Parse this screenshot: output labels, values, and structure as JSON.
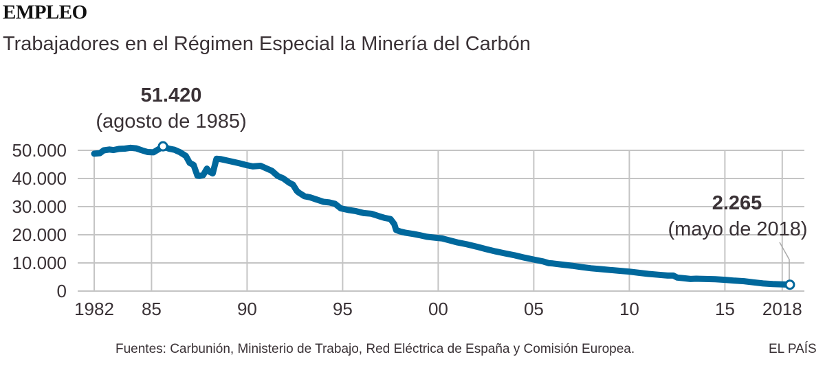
{
  "header": {
    "kicker": "EMPLEO",
    "subtitle": "Trabajadores en el Régimen Especial la Minería del Carbón"
  },
  "footer": {
    "source": "Fuentes: Carbunión, Ministerio de Trabajo, Red Eléctrica de España y Comisión Europea.",
    "brand": "EL PAÍS"
  },
  "colors": {
    "line": "#00689c",
    "grid": "#c4c4c4",
    "text": "#3a3236"
  },
  "chart_data": {
    "type": "line",
    "title": "Trabajadores en el Régimen Especial la Minería del Carbón",
    "xlabel": "",
    "ylabel": "",
    "xlim": [
      1982,
      2018.4
    ],
    "ylim": [
      0,
      50000
    ],
    "grid": true,
    "legend": "none",
    "y_ticks": [
      {
        "value": 0,
        "label": "0"
      },
      {
        "value": 10000,
        "label": "10.000"
      },
      {
        "value": 20000,
        "label": "20.000"
      },
      {
        "value": 30000,
        "label": "30.000"
      },
      {
        "value": 40000,
        "label": "40.000"
      },
      {
        "value": 50000,
        "label": "50.000"
      }
    ],
    "x_ticks": [
      {
        "value": 1982,
        "label": "1982"
      },
      {
        "value": 1985,
        "label": "85"
      },
      {
        "value": 1990,
        "label": "90"
      },
      {
        "value": 1995,
        "label": "95"
      },
      {
        "value": 2000,
        "label": "00"
      },
      {
        "value": 2005,
        "label": "05"
      },
      {
        "value": 2010,
        "label": "10"
      },
      {
        "value": 2015,
        "label": "15"
      },
      {
        "value": 2018,
        "label": "2018"
      }
    ],
    "series": [
      {
        "name": "Trabajadores",
        "x": [
          1982.0,
          1982.3,
          1982.5,
          1982.8,
          1983.0,
          1983.3,
          1983.6,
          1983.9,
          1984.2,
          1984.5,
          1984.8,
          1985.1,
          1985.4,
          1985.6,
          1985.9,
          1986.2,
          1986.5,
          1986.8,
          1987.0,
          1987.2,
          1987.4,
          1987.5,
          1987.7,
          1987.9,
          1988.0,
          1988.2,
          1988.4,
          1988.6,
          1988.8,
          1989.2,
          1989.6,
          1990.0,
          1990.3,
          1990.7,
          1991.0,
          1991.3,
          1991.6,
          1991.9,
          1992.2,
          1992.4,
          1992.6,
          1992.7,
          1993.0,
          1993.3,
          1993.6,
          1994.0,
          1994.3,
          1994.6,
          1994.9,
          1995.3,
          1995.7,
          1996.1,
          1996.5,
          1996.9,
          1997.2,
          1997.5,
          1997.7,
          1997.8,
          1998.0,
          1998.3,
          1998.7,
          1999.0,
          1999.4,
          1999.8,
          2000.2,
          2000.6,
          2001.0,
          2001.5,
          2002.0,
          2002.5,
          2003.0,
          2003.5,
          2004.0,
          2004.5,
          2005.0,
          2005.5,
          2005.8,
          2006.0,
          2006.5,
          2007.0,
          2007.5,
          2008.0,
          2008.5,
          2009.0,
          2009.5,
          2010.0,
          2010.5,
          2011.0,
          2011.5,
          2012.0,
          2012.3,
          2012.5,
          2012.8,
          2013.2,
          2013.5,
          2014.0,
          2014.5,
          2015.0,
          2015.5,
          2016.0,
          2016.5,
          2017.0,
          2017.5,
          2018.0,
          2018.4
        ],
        "y": [
          48800,
          49000,
          50000,
          50300,
          50100,
          50500,
          50600,
          50900,
          50700,
          50000,
          49400,
          49300,
          50500,
          51420,
          50600,
          50200,
          49300,
          48000,
          45500,
          44800,
          41000,
          40900,
          41200,
          43500,
          42500,
          41800,
          47000,
          46900,
          46600,
          46000,
          45400,
          44700,
          44300,
          44500,
          43600,
          42700,
          40900,
          40000,
          38500,
          37800,
          35600,
          35000,
          33700,
          33300,
          32600,
          31700,
          31500,
          31000,
          29400,
          28800,
          28400,
          27700,
          27500,
          26600,
          26000,
          25600,
          23800,
          21700,
          21200,
          20700,
          20300,
          19900,
          19300,
          19000,
          18700,
          18000,
          17300,
          16600,
          15800,
          14900,
          14100,
          13400,
          12700,
          11900,
          11200,
          10500,
          9900,
          9800,
          9400,
          9000,
          8500,
          8100,
          7800,
          7500,
          7200,
          6900,
          6500,
          6100,
          5800,
          5500,
          5500,
          4800,
          4600,
          4300,
          4400,
          4300,
          4200,
          4000,
          3700,
          3500,
          3100,
          2700,
          2500,
          2400,
          2265
        ]
      }
    ],
    "annotations": [
      {
        "x": 1985.6,
        "y": 51420,
        "value_label": "51.420",
        "date_label": "(agosto de 1985)"
      },
      {
        "x": 2018.4,
        "y": 2265,
        "value_label": "2.265",
        "date_label": "(mayo de 2018)"
      }
    ]
  }
}
